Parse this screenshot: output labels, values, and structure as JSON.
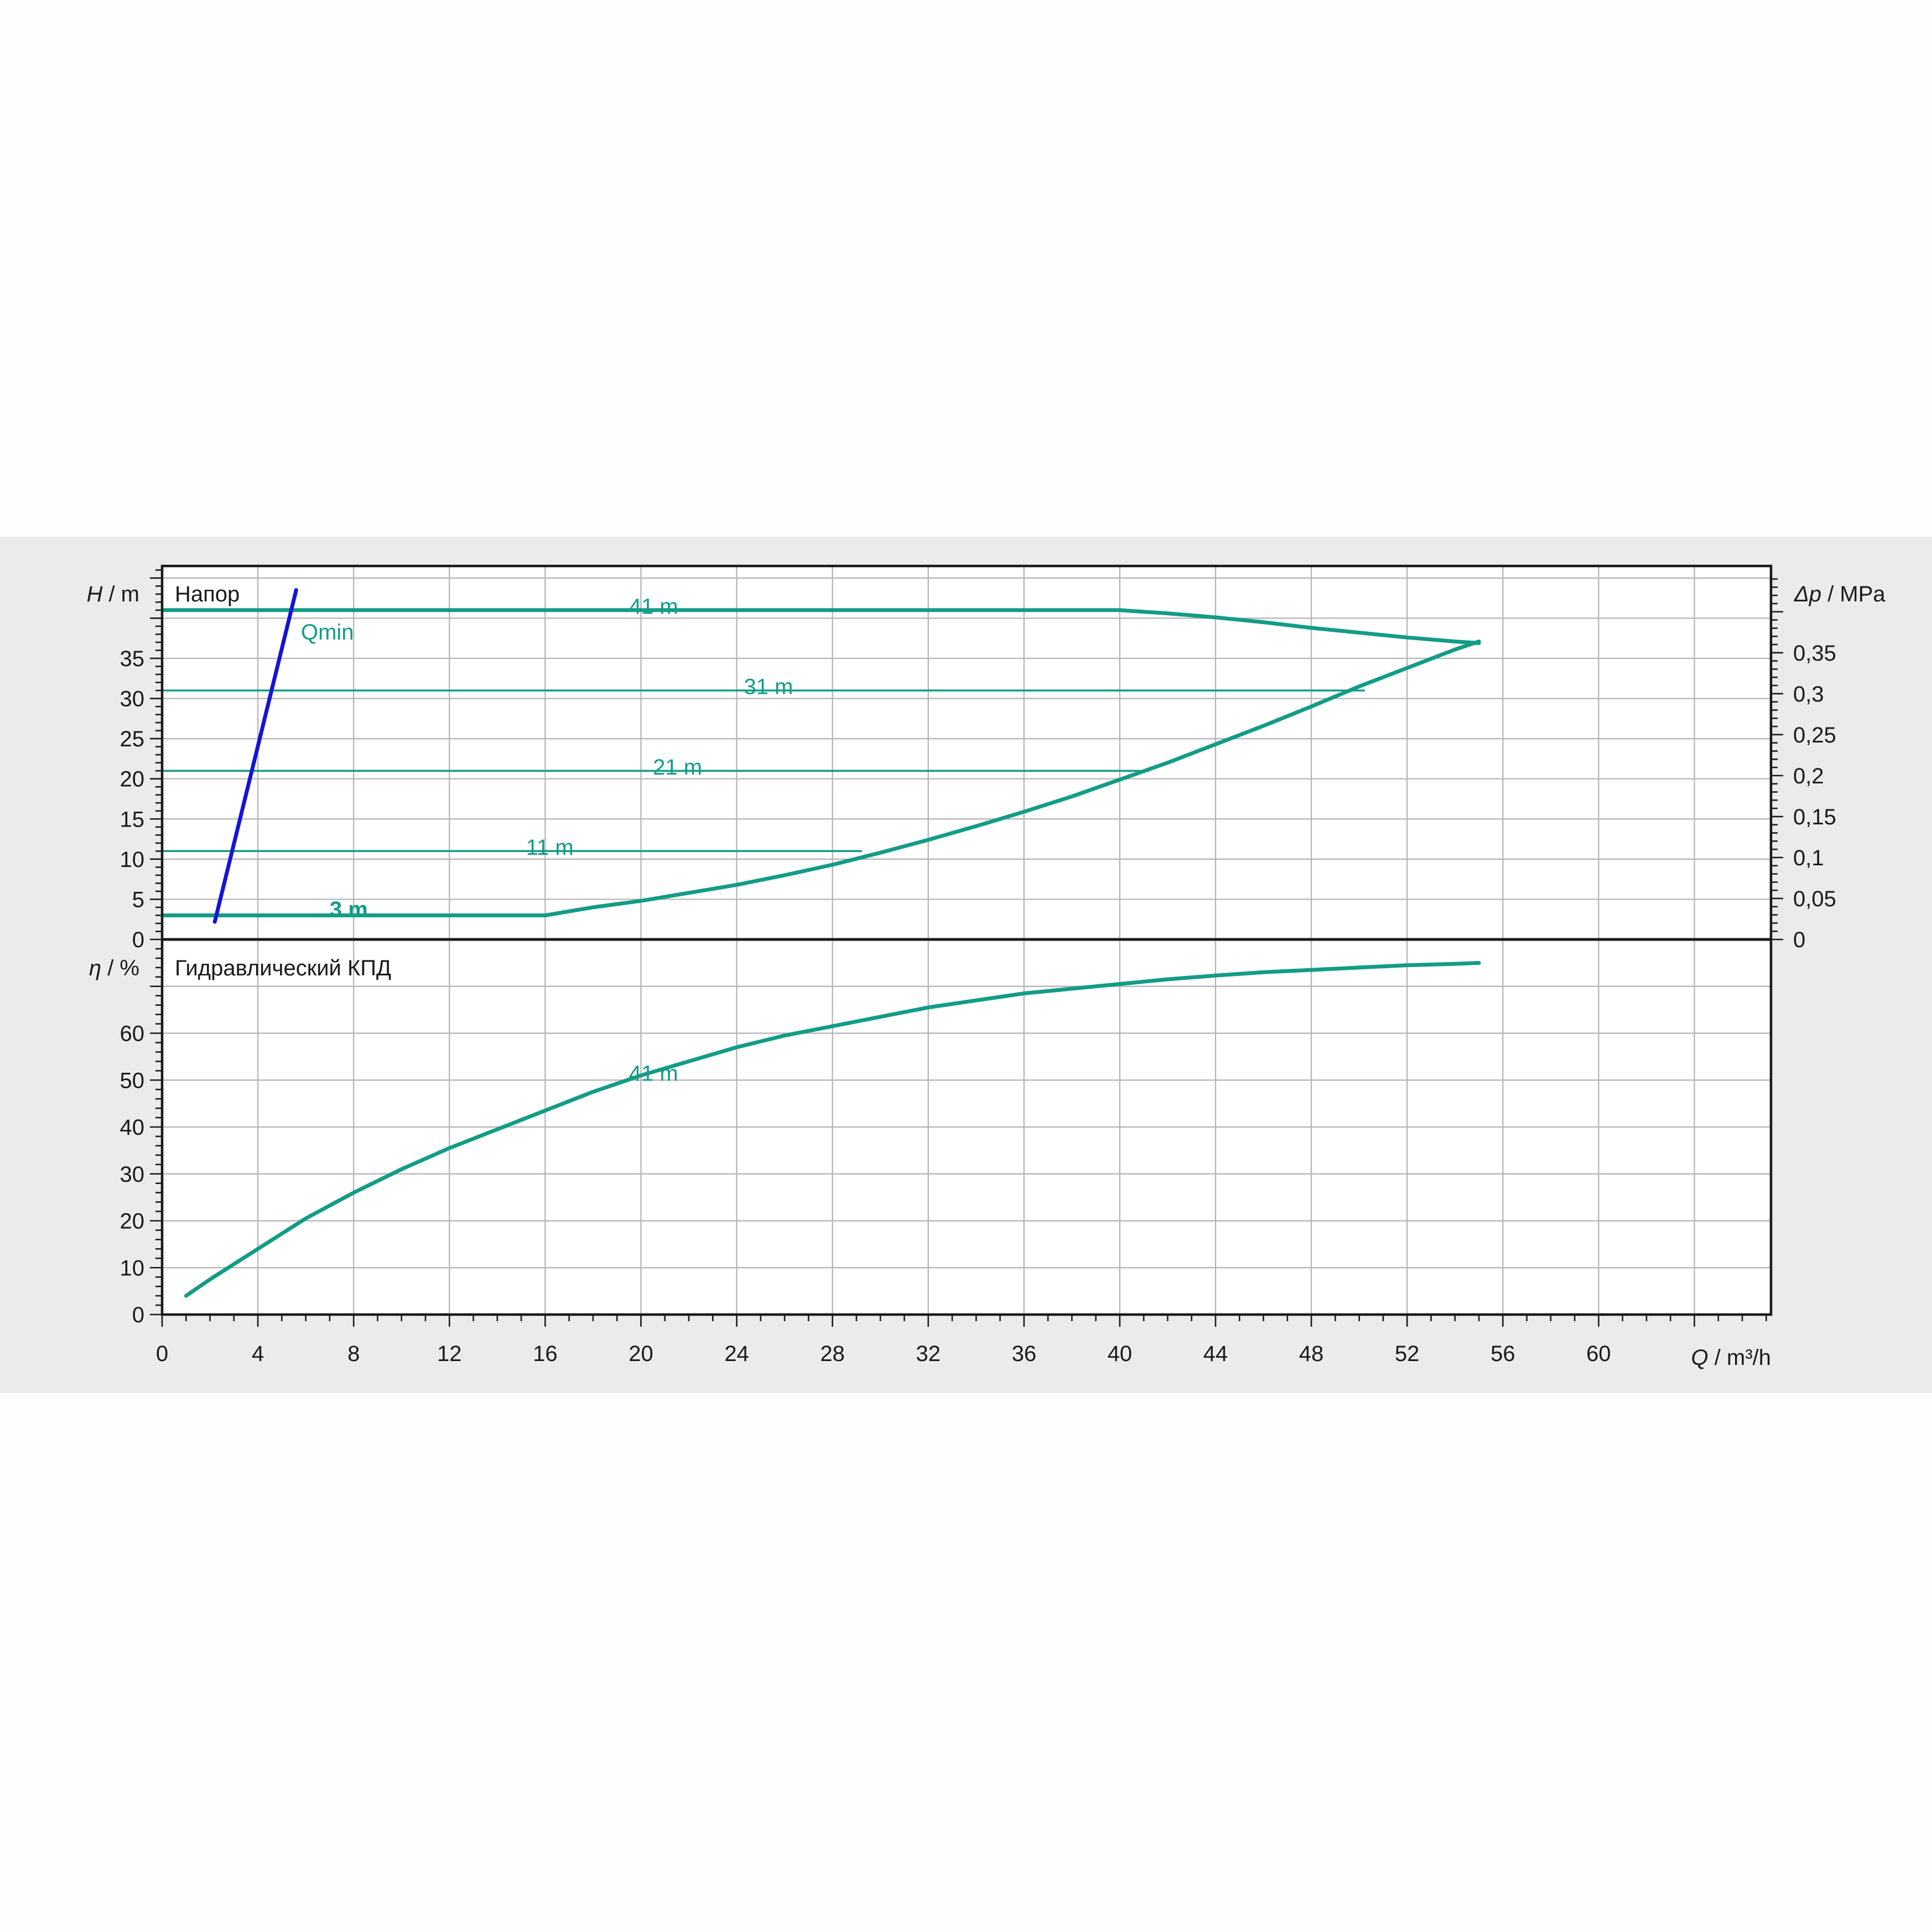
{
  "chart_data": [
    {
      "type": "line",
      "panel": "head",
      "title": "Напор",
      "ylabel_symbol": "H",
      "ylabel_unit": " / m",
      "y2label_symbol": "Δp",
      "y2label_unit": " / MPa",
      "xlim": [
        0,
        67.2
      ],
      "ylim": [
        0,
        46.5
      ],
      "y_ticks": [
        "0",
        "5",
        "10",
        "15",
        "20",
        "25",
        "30",
        "35"
      ],
      "y2_ticks": [
        {
          "value": 0,
          "label": "0"
        },
        {
          "value": 0.05,
          "label": "0,05"
        },
        {
          "value": 0.1,
          "label": "0,1"
        },
        {
          "value": 0.15,
          "label": "0,15"
        },
        {
          "value": 0.2,
          "label": "0,2"
        },
        {
          "value": 0.25,
          "label": "0,25"
        },
        {
          "value": 0.3,
          "label": "0,3"
        },
        {
          "value": 0.35,
          "label": "0,35"
        }
      ],
      "grid": true,
      "series": [
        {
          "name": "41 m",
          "label_at": [
            19.5,
            41.5
          ],
          "x": [
            0,
            40,
            42,
            44,
            46,
            48,
            50,
            52,
            54,
            55
          ],
          "y": [
            41,
            41,
            40.6,
            40.1,
            39.5,
            38.8,
            38.2,
            37.6,
            37.1,
            36.9
          ]
        },
        {
          "name": "31 m",
          "label_at": [
            24.3,
            31.5
          ],
          "x": [
            0,
            50.2
          ],
          "y": [
            31,
            31
          ]
        },
        {
          "name": "21 m",
          "label_at": [
            20.5,
            21.5
          ],
          "x": [
            0,
            41.2
          ],
          "y": [
            21,
            21
          ]
        },
        {
          "name": "11 m",
          "label_at": [
            15.2,
            11.5
          ],
          "x": [
            0,
            29.2
          ],
          "y": [
            11,
            11
          ]
        },
        {
          "name": "3 m",
          "label_at": [
            7.0,
            3.8
          ],
          "x": [
            0,
            16,
            18,
            20,
            22,
            24,
            26,
            28,
            30,
            32,
            34,
            36,
            38,
            40,
            42,
            44,
            46,
            48,
            50,
            52,
            54,
            55
          ],
          "y": [
            3,
            3,
            4,
            4.8,
            5.8,
            6.8,
            8.0,
            9.3,
            10.8,
            12.4,
            14.1,
            15.9,
            17.8,
            19.9,
            22.0,
            24.3,
            26.6,
            29.0,
            31.5,
            33.8,
            36.1,
            37.1
          ]
        }
      ],
      "qmin": {
        "name": "Qmin",
        "label_at": [
          5.8,
          38.3
        ],
        "x": [
          2.2,
          5.6
        ],
        "y": [
          2.2,
          43.5
        ]
      }
    },
    {
      "type": "line",
      "panel": "efficiency",
      "title": "Гидравлический КПД",
      "ylabel_symbol": "η",
      "ylabel_unit": " / %",
      "xlabel_symbol": "Q",
      "xlabel_unit": " / m³/h",
      "xlim": [
        0,
        67.2
      ],
      "ylim": [
        0,
        80
      ],
      "x_ticks": [
        "0",
        "4",
        "8",
        "12",
        "16",
        "20",
        "24",
        "28",
        "32",
        "36",
        "40",
        "44",
        "48",
        "52",
        "56",
        "60"
      ],
      "y_ticks": [
        "0",
        "10",
        "20",
        "30",
        "40",
        "50",
        "60"
      ],
      "grid": true,
      "series": [
        {
          "name": "41 m",
          "label_at": [
            19.5,
            51.5
          ],
          "x": [
            1.0,
            2,
            4,
            6,
            8,
            10,
            12,
            14,
            16,
            18,
            20,
            22,
            24,
            26,
            28,
            30,
            32,
            34,
            36,
            38,
            40,
            42,
            44,
            46,
            48,
            50,
            52,
            54,
            55
          ],
          "y": [
            4,
            7.5,
            14,
            20.5,
            26,
            31,
            35.5,
            39.5,
            43.5,
            47.5,
            51,
            54,
            57,
            59.5,
            61.5,
            63.5,
            65.5,
            67,
            68.5,
            69.5,
            70.5,
            71.5,
            72.3,
            73,
            73.5,
            74,
            74.5,
            74.8,
            75
          ]
        }
      ]
    }
  ]
}
